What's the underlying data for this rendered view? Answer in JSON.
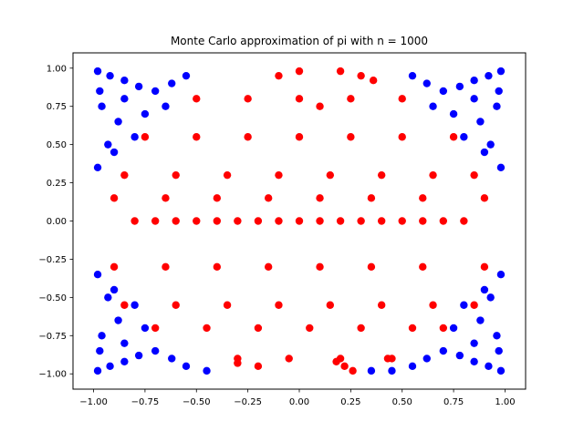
{
  "chart_data": {
    "type": "scatter",
    "title": "Monte Carlo approximation of pi with n = 1000",
    "xlabel": "",
    "ylabel": "",
    "xlim": [
      -1.1,
      1.1
    ],
    "ylim": [
      -1.1,
      1.1
    ],
    "xticks": [
      -1.0,
      -0.75,
      -0.5,
      -0.25,
      0.0,
      0.25,
      0.5,
      0.75,
      1.0
    ],
    "yticks": [
      -1.0,
      -0.75,
      -0.5,
      -0.25,
      0.0,
      0.25,
      0.5,
      0.75,
      1.0
    ],
    "xtick_labels": [
      "−1.00",
      "−0.75",
      "−0.50",
      "−0.25",
      "0.00",
      "0.25",
      "0.50",
      "0.75",
      "1.00"
    ],
    "ytick_labels": [
      "−1.00",
      "−0.75",
      "−0.50",
      "−0.25",
      "0.00",
      "0.25",
      "0.50",
      "0.75",
      "1.00"
    ],
    "grid": false,
    "n": 1000,
    "series": [
      {
        "color": "#ff0000",
        "x": [
          -0.8,
          -0.7,
          -0.6,
          -0.5,
          -0.4,
          -0.3,
          -0.2,
          -0.1,
          0.0,
          0.1,
          0.2,
          0.3,
          0.4,
          0.5,
          0.6,
          0.7,
          0.8,
          -0.85,
          -0.6,
          -0.35,
          -0.1,
          0.15,
          0.4,
          0.65,
          0.85,
          -0.9,
          -0.65,
          -0.4,
          -0.15,
          0.1,
          0.35,
          0.6,
          0.9,
          -0.75,
          -0.5,
          -0.25,
          0.0,
          0.25,
          0.5,
          0.75,
          -0.9,
          -0.65,
          -0.4,
          -0.15,
          0.1,
          0.35,
          0.6,
          0.9,
          -0.85,
          -0.6,
          -0.35,
          -0.1,
          0.15,
          0.4,
          0.65,
          0.85,
          -0.7,
          -0.45,
          -0.2,
          0.05,
          0.3,
          0.55,
          0.7,
          -0.5,
          -0.25,
          0.0,
          0.25,
          0.5,
          -0.3,
          -0.05,
          0.2,
          0.45,
          0.0,
          0.2,
          0.3,
          0.26,
          0.22,
          0.18,
          -0.1,
          -0.2,
          0.36,
          0.43,
          0.1,
          -0.3
        ],
        "y": [
          0.0,
          0.0,
          0.0,
          0.0,
          0.0,
          0.0,
          0.0,
          0.0,
          0.0,
          0.0,
          0.0,
          0.0,
          0.0,
          0.0,
          0.0,
          0.0,
          0.0,
          0.3,
          0.3,
          0.3,
          0.3,
          0.3,
          0.3,
          0.3,
          0.3,
          -0.3,
          -0.3,
          -0.3,
          -0.3,
          -0.3,
          -0.3,
          -0.3,
          -0.3,
          0.55,
          0.55,
          0.55,
          0.55,
          0.55,
          0.55,
          0.55,
          0.15,
          0.15,
          0.15,
          0.15,
          0.15,
          0.15,
          0.15,
          0.15,
          -0.55,
          -0.55,
          -0.55,
          -0.55,
          -0.55,
          -0.55,
          -0.55,
          -0.55,
          -0.7,
          -0.7,
          -0.7,
          -0.7,
          -0.7,
          -0.7,
          -0.7,
          0.8,
          0.8,
          0.8,
          0.8,
          0.8,
          -0.9,
          -0.9,
          -0.9,
          -0.9,
          0.98,
          0.98,
          0.95,
          -0.98,
          -0.95,
          -0.92,
          0.95,
          -0.95,
          0.92,
          -0.9,
          0.75,
          -0.93
        ]
      },
      {
        "color": "#0000ff",
        "x": [
          -0.98,
          -0.92,
          -0.85,
          -0.78,
          -0.7,
          -0.62,
          -0.55,
          -0.96,
          -0.88,
          -0.8,
          -0.93,
          -0.98,
          -0.9,
          -0.97,
          -0.85,
          -0.75,
          -0.65,
          0.98,
          0.92,
          0.85,
          0.78,
          0.7,
          0.62,
          0.55,
          0.96,
          0.88,
          0.8,
          0.93,
          0.98,
          0.9,
          0.97,
          0.85,
          0.75,
          0.65,
          -0.98,
          -0.92,
          -0.85,
          -0.78,
          -0.7,
          -0.62,
          -0.55,
          -0.45,
          -0.96,
          -0.88,
          -0.8,
          -0.93,
          -0.98,
          -0.9,
          -0.97,
          -0.85,
          -0.75,
          0.98,
          0.92,
          0.85,
          0.78,
          0.7,
          0.62,
          0.55,
          0.45,
          0.96,
          0.88,
          0.8,
          0.93,
          0.98,
          0.9,
          0.97,
          0.85,
          0.75,
          0.35
        ],
        "y": [
          0.98,
          0.95,
          0.92,
          0.88,
          0.85,
          0.9,
          0.95,
          0.75,
          0.65,
          0.55,
          0.5,
          0.35,
          0.45,
          0.85,
          0.8,
          0.7,
          0.75,
          0.98,
          0.95,
          0.92,
          0.88,
          0.85,
          0.9,
          0.95,
          0.75,
          0.65,
          0.55,
          0.5,
          0.35,
          0.45,
          0.85,
          0.8,
          0.7,
          0.75,
          -0.98,
          -0.95,
          -0.92,
          -0.88,
          -0.85,
          -0.9,
          -0.95,
          -0.98,
          -0.75,
          -0.65,
          -0.55,
          -0.5,
          -0.35,
          -0.45,
          -0.85,
          -0.8,
          -0.7,
          -0.98,
          -0.95,
          -0.92,
          -0.88,
          -0.85,
          -0.9,
          -0.95,
          -0.98,
          -0.75,
          -0.65,
          -0.55,
          -0.5,
          -0.35,
          -0.45,
          -0.85,
          -0.8,
          -0.7,
          -0.98
        ]
      }
    ]
  }
}
